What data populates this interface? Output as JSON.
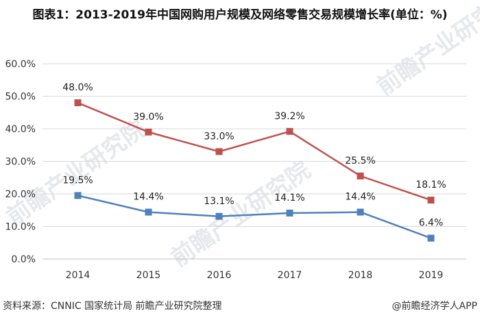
{
  "title": "图表1：2013-2019年中国网购用户规模及网络零售交易规模增长率(单位：%)",
  "source": "资料来源：CNNIC 国家统计局 前瞻产业研究院整理",
  "brand": "@前瞻经济学人APP",
  "watermark": "前瞻产业研究院",
  "chart_data": {
    "type": "line",
    "categories": [
      "2014",
      "2015",
      "2016",
      "2017",
      "2018",
      "2019"
    ],
    "ylim": [
      0,
      60
    ],
    "yticks": [
      "0.0%",
      "10.0%",
      "20.0%",
      "30.0%",
      "40.0%",
      "50.0%",
      "60.0%"
    ],
    "grid": true,
    "series": [
      {
        "values": [
          48.0,
          39.0,
          33.0,
          39.2,
          25.5,
          18.1
        ],
        "labels": [
          "48.0%",
          "39.0%",
          "33.0%",
          "39.2%",
          "25.5%",
          "18.1%"
        ],
        "color": "#c0504d"
      },
      {
        "values": [
          19.5,
          14.4,
          13.1,
          14.1,
          14.4,
          6.4
        ],
        "labels": [
          "19.5%",
          "14.4%",
          "13.1%",
          "14.1%",
          "14.4%",
          "6.4%"
        ],
        "color": "#4f81bd"
      }
    ]
  }
}
